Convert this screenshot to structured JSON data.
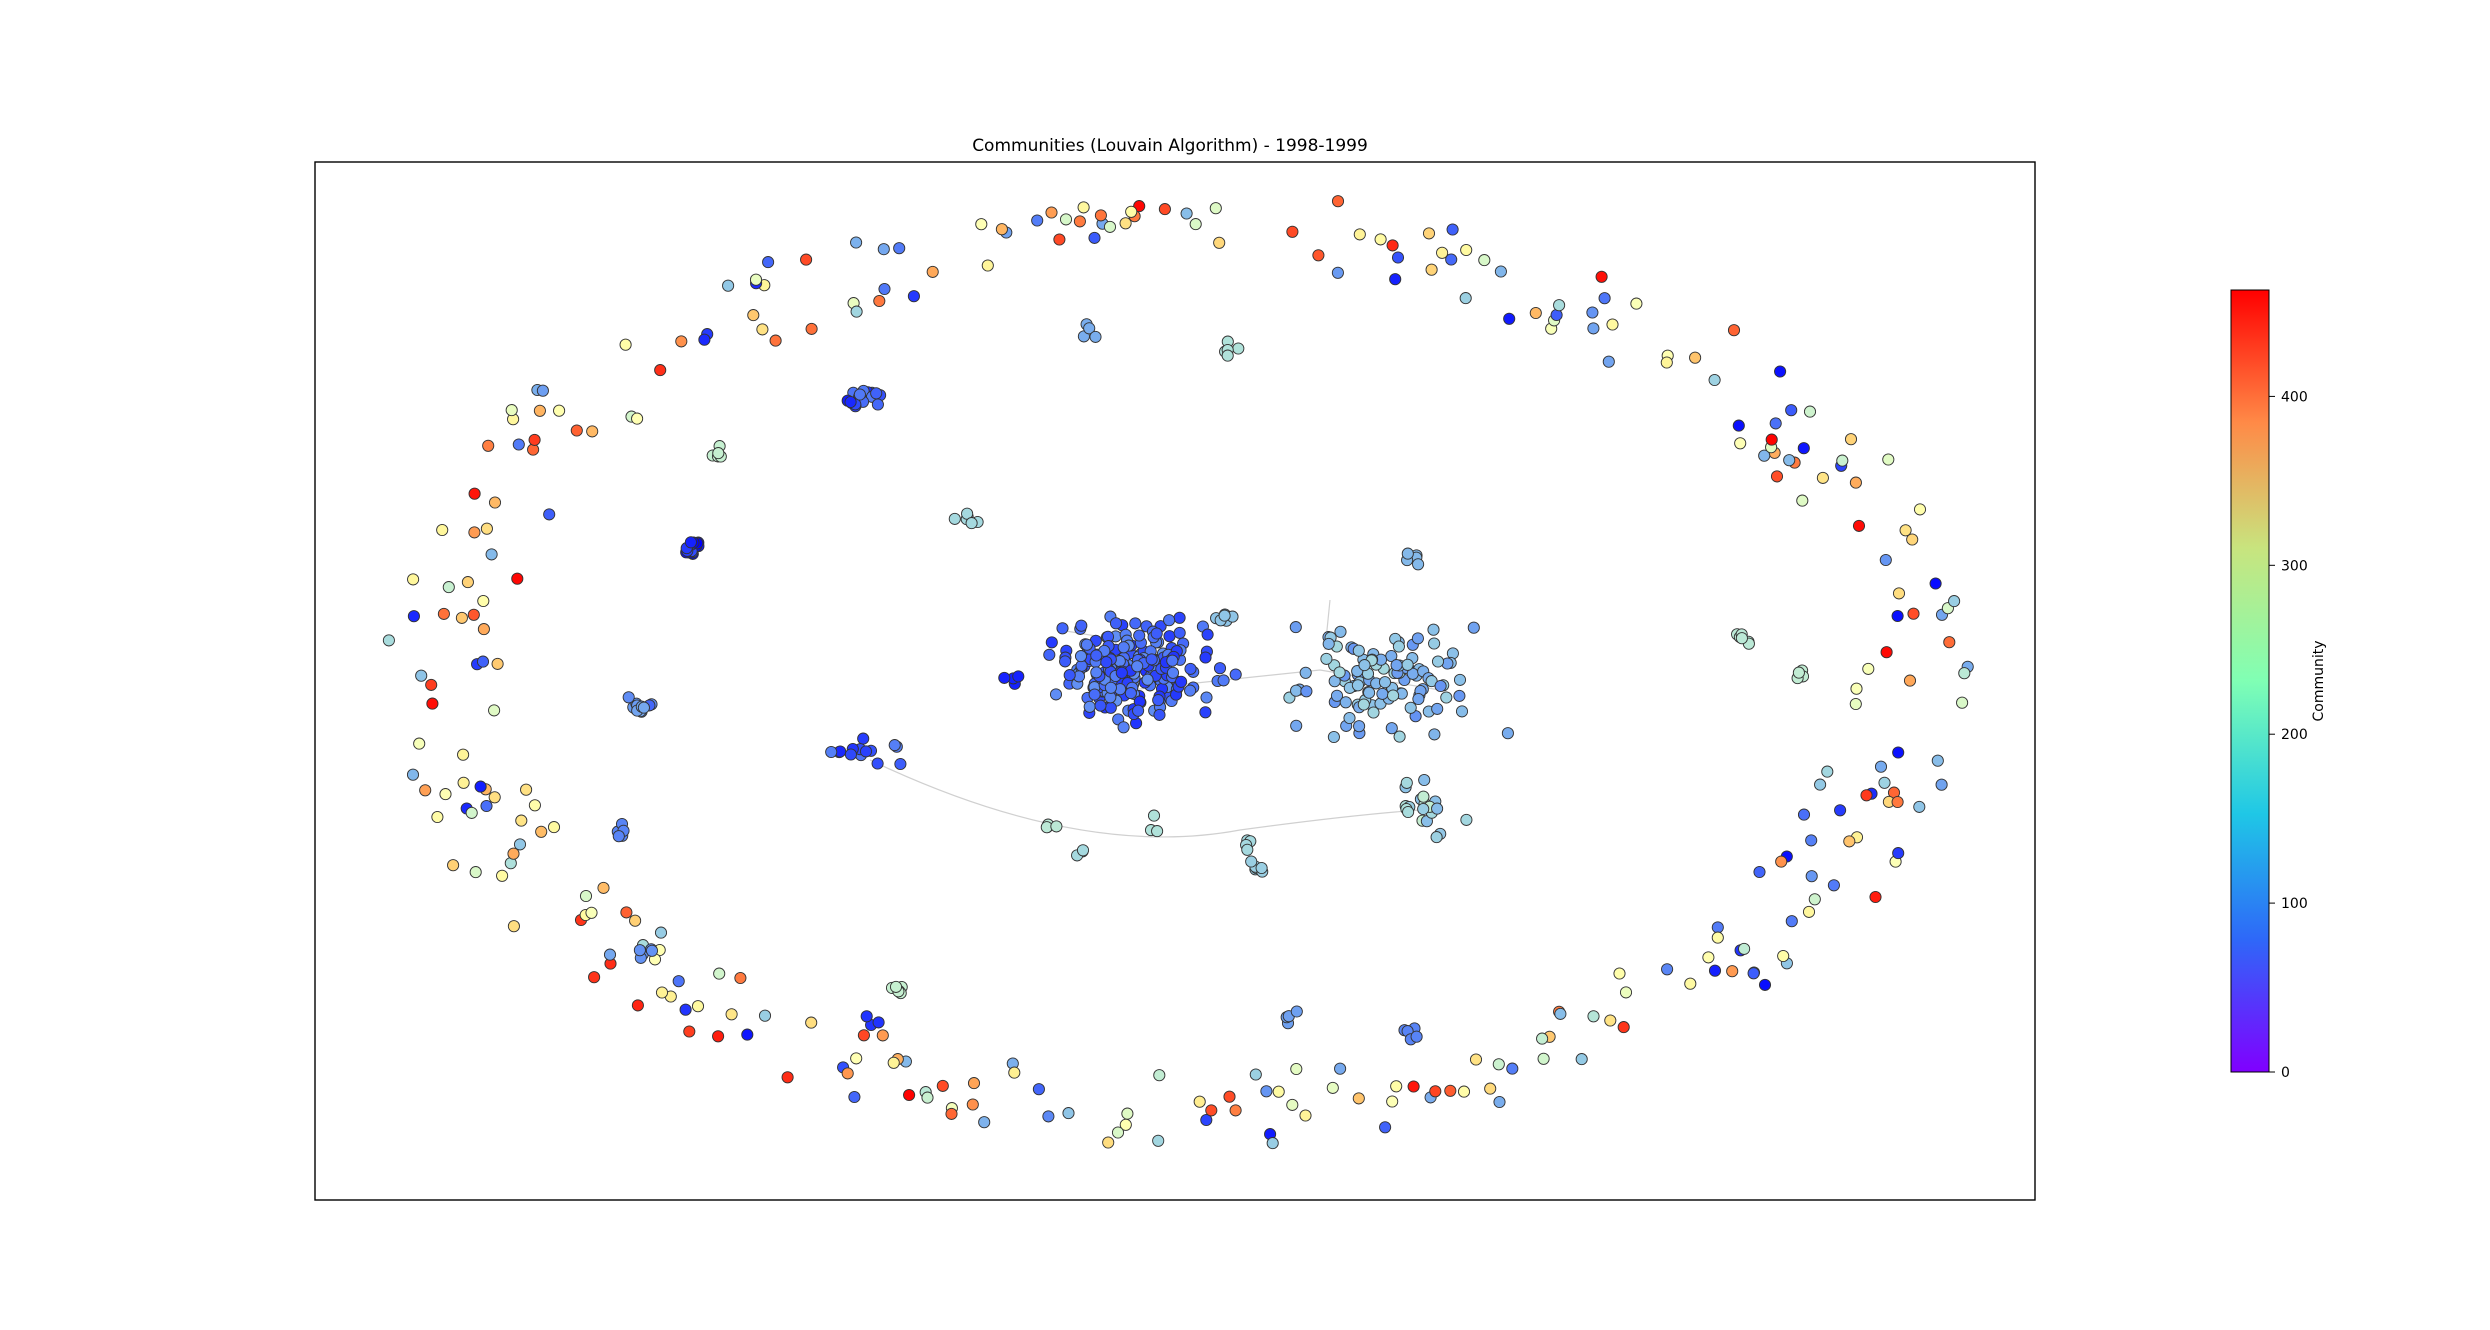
{
  "chart_data": {
    "type": "scatter",
    "title": "Communities (Louvain Algorithm) - 1998-1999",
    "colorbar": {
      "label": "Community",
      "range": [
        0,
        463
      ],
      "ticks": [
        "0",
        "100",
        "200",
        "300",
        "400"
      ],
      "tick_values": [
        0,
        100,
        200,
        300,
        400
      ],
      "colormap": "rainbow"
    },
    "xlabel": "",
    "ylabel": "",
    "grid": false,
    "clusters": [
      {
        "id": "main",
        "community": 60,
        "nodes": 210
      },
      {
        "id": "right",
        "community": 120,
        "nodes": 110
      },
      {
        "id": "upper-left",
        "community": 45,
        "nodes": 20
      },
      {
        "id": "violet-left",
        "community": 15,
        "nodes": 16
      },
      {
        "id": "lower-left",
        "community": 50,
        "nodes": 14
      },
      {
        "id": "small-left",
        "community": 90,
        "nodes": 12
      },
      {
        "id": "lower-cyan",
        "community": 150,
        "nodes": 20
      }
    ],
    "ring": {
      "isolated_nodes": 330
    }
  }
}
